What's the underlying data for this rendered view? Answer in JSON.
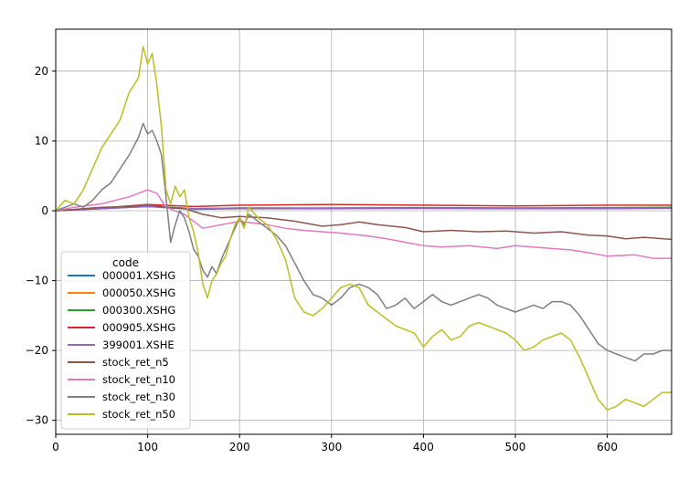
{
  "chart_data": {
    "type": "line",
    "title": "",
    "xlabel": "",
    "ylabel": "",
    "xlim": [
      0,
      670
    ],
    "ylim": [
      -32,
      26
    ],
    "xticks": [
      0,
      100,
      200,
      300,
      400,
      500,
      600
    ],
    "yticks": [
      -30,
      -20,
      -10,
      0,
      10,
      20
    ],
    "grid": true,
    "legend": {
      "title": "code",
      "placement": "lower-left"
    },
    "series": [
      {
        "name": "000001.XSHG",
        "color": "#1f77b4",
        "x": [
          0,
          50,
          100,
          150,
          200,
          300,
          400,
          500,
          600,
          670
        ],
        "y": [
          0,
          0.3,
          0.6,
          0.2,
          0.3,
          0.3,
          0.35,
          0.3,
          0.35,
          0.4
        ]
      },
      {
        "name": "000050.XSHG",
        "color": "#ff7f0e",
        "x": [
          0,
          50,
          100,
          150,
          200,
          300,
          400,
          500,
          600,
          670
        ],
        "y": [
          0,
          0.3,
          0.7,
          0.25,
          0.35,
          0.35,
          0.4,
          0.35,
          0.4,
          0.45
        ]
      },
      {
        "name": "000300.XSHG",
        "color": "#2ca02c",
        "x": [
          0,
          50,
          100,
          150,
          200,
          300,
          400,
          500,
          600,
          670
        ],
        "y": [
          0,
          0.35,
          0.7,
          0.3,
          0.4,
          0.4,
          0.45,
          0.4,
          0.45,
          0.5
        ]
      },
      {
        "name": "000905.XSHG",
        "color": "#d62728",
        "x": [
          0,
          50,
          100,
          150,
          200,
          300,
          400,
          500,
          600,
          670
        ],
        "y": [
          0,
          0.4,
          0.9,
          0.6,
          0.8,
          0.9,
          0.8,
          0.7,
          0.8,
          0.8
        ]
      },
      {
        "name": "399001.XSHE",
        "color": "#9467bd",
        "x": [
          0,
          50,
          100,
          150,
          200,
          300,
          400,
          500,
          600,
          670
        ],
        "y": [
          0,
          0.3,
          0.6,
          0.3,
          0.4,
          0.35,
          0.35,
          0.3,
          0.3,
          0.35
        ]
      },
      {
        "name": "stock_ret_n5",
        "color": "#8c564b",
        "x": [
          0,
          20,
          50,
          80,
          100,
          120,
          140,
          160,
          180,
          200,
          230,
          260,
          290,
          310,
          330,
          350,
          380,
          400,
          430,
          460,
          490,
          520,
          550,
          580,
          600,
          620,
          640,
          670
        ],
        "y": [
          0,
          0.2,
          0.5,
          0.6,
          0.9,
          0.5,
          0.3,
          -0.5,
          -1.0,
          -0.8,
          -1.0,
          -1.5,
          -2.2,
          -2.0,
          -1.6,
          -2.0,
          -2.4,
          -3.0,
          -2.8,
          -3.0,
          -2.9,
          -3.2,
          -3.0,
          -3.5,
          -3.6,
          -4.0,
          -3.8,
          -4.1
        ]
      },
      {
        "name": "stock_ret_n10",
        "color": "#e377c2",
        "x": [
          0,
          20,
          50,
          80,
          100,
          110,
          120,
          140,
          160,
          180,
          200,
          230,
          250,
          270,
          290,
          310,
          340,
          360,
          380,
          400,
          420,
          450,
          480,
          500,
          530,
          560,
          580,
          600,
          630,
          650,
          670
        ],
        "y": [
          0,
          0.5,
          1.0,
          2.0,
          3.0,
          2.5,
          0.5,
          -0.5,
          -2.5,
          -2.0,
          -1.5,
          -2.0,
          -2.5,
          -2.8,
          -3.0,
          -3.2,
          -3.6,
          -4.0,
          -4.5,
          -5.0,
          -5.2,
          -5.0,
          -5.4,
          -5.0,
          -5.3,
          -5.6,
          -6.0,
          -6.5,
          -6.3,
          -6.8,
          -6.8
        ]
      },
      {
        "name": "stock_ret_n30",
        "color": "#7f7f7f",
        "x": [
          0,
          10,
          20,
          30,
          40,
          50,
          60,
          70,
          80,
          90,
          95,
          100,
          105,
          110,
          115,
          120,
          125,
          130,
          135,
          140,
          145,
          150,
          155,
          160,
          165,
          170,
          175,
          180,
          185,
          190,
          195,
          200,
          205,
          210,
          220,
          230,
          240,
          250,
          260,
          270,
          280,
          290,
          300,
          310,
          320,
          330,
          340,
          350,
          360,
          370,
          380,
          390,
          400,
          410,
          420,
          430,
          440,
          450,
          460,
          470,
          480,
          490,
          500,
          510,
          520,
          530,
          540,
          550,
          560,
          570,
          580,
          590,
          600,
          610,
          620,
          630,
          640,
          650,
          660,
          670
        ],
        "y": [
          0,
          0.5,
          1.0,
          0.5,
          1.5,
          3.0,
          4.0,
          6.0,
          8.0,
          10.5,
          12.5,
          11.0,
          11.5,
          10.0,
          8.0,
          2.0,
          -4.5,
          -2.0,
          0.0,
          -1.0,
          -3.0,
          -5.5,
          -6.5,
          -8.5,
          -9.5,
          -8.0,
          -9.0,
          -7.0,
          -5.5,
          -4.0,
          -2.5,
          -1.0,
          -2.0,
          -0.5,
          -1.5,
          -2.5,
          -3.5,
          -5.0,
          -7.5,
          -10.0,
          -12.0,
          -12.5,
          -13.5,
          -12.5,
          -11.0,
          -10.5,
          -11.0,
          -12.0,
          -14.0,
          -13.5,
          -12.5,
          -14.0,
          -13.0,
          -12.0,
          -13.0,
          -13.5,
          -13.0,
          -12.5,
          -12.0,
          -12.5,
          -13.5,
          -14.0,
          -14.5,
          -14.0,
          -13.5,
          -14.0,
          -13.0,
          -13.0,
          -13.5,
          -15.0,
          -17.0,
          -19.0,
          -20.0,
          -20.5,
          -21.0,
          -21.5,
          -20.5,
          -20.5,
          -20.0,
          -20.0
        ]
      },
      {
        "name": "stock_ret_n50",
        "color": "#bcbd22",
        "x": [
          0,
          10,
          20,
          30,
          40,
          50,
          60,
          70,
          80,
          90,
          95,
          100,
          105,
          110,
          115,
          120,
          125,
          130,
          135,
          140,
          145,
          150,
          155,
          160,
          165,
          170,
          175,
          180,
          185,
          190,
          195,
          200,
          205,
          210,
          220,
          230,
          240,
          250,
          260,
          270,
          280,
          290,
          300,
          310,
          320,
          330,
          340,
          350,
          360,
          370,
          380,
          390,
          400,
          410,
          420,
          430,
          440,
          450,
          460,
          470,
          480,
          490,
          500,
          510,
          520,
          530,
          540,
          550,
          560,
          570,
          580,
          590,
          600,
          610,
          620,
          630,
          640,
          650,
          660,
          670
        ],
        "y": [
          0,
          1.5,
          1.0,
          3.0,
          6.0,
          9.0,
          11.0,
          13.0,
          17.0,
          19.0,
          23.5,
          21.0,
          22.5,
          18.0,
          12.0,
          3.0,
          1.0,
          3.5,
          2.0,
          3.0,
          -1.0,
          -3.0,
          -6.0,
          -10.5,
          -12.5,
          -10.0,
          -9.0,
          -7.5,
          -6.5,
          -4.0,
          -2.0,
          -1.0,
          -2.5,
          0.5,
          -1.0,
          -2.0,
          -4.0,
          -7.0,
          -12.5,
          -14.5,
          -15.0,
          -14.0,
          -12.5,
          -11.0,
          -10.5,
          -11.0,
          -13.5,
          -14.5,
          -15.5,
          -16.5,
          -17.0,
          -17.5,
          -19.5,
          -18.0,
          -17.0,
          -18.5,
          -18.0,
          -16.5,
          -16.0,
          -16.5,
          -17.0,
          -17.5,
          -18.5,
          -20.0,
          -19.5,
          -18.5,
          -18.0,
          -17.5,
          -18.5,
          -21.0,
          -24.0,
          -27.0,
          -28.5,
          -28.0,
          -27.0,
          -27.5,
          -28.0,
          -27.0,
          -26.0,
          -26.0
        ]
      }
    ]
  }
}
